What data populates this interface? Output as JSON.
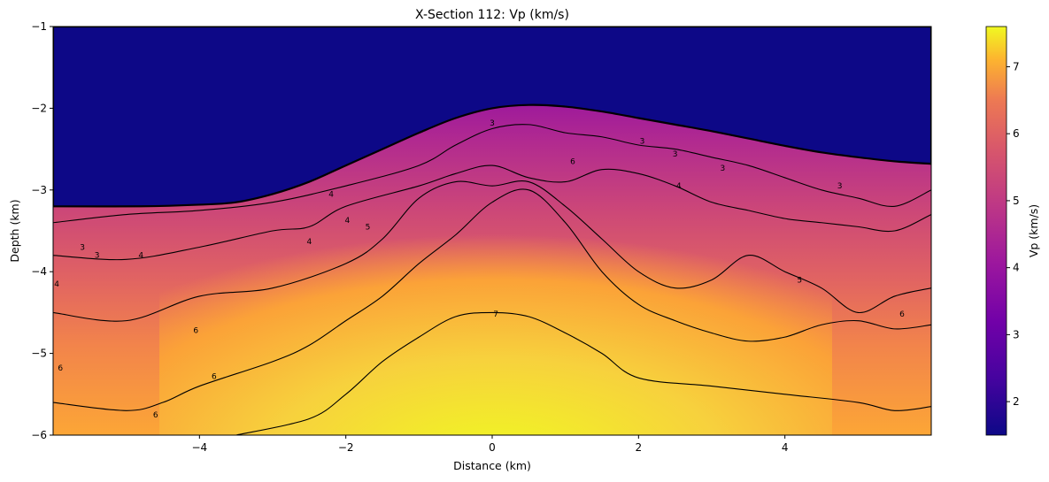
{
  "chart_data": {
    "type": "heatmap",
    "title": "X-Section 112: Vp (km/s)",
    "xlabel": "Distance (km)",
    "ylabel": "Depth (km)",
    "xlim": [
      -6,
      6
    ],
    "ylim": [
      -6,
      -1
    ],
    "xticks": [
      -4,
      -2,
      0,
      2,
      4
    ],
    "yticks": [
      -1,
      -2,
      -3,
      -4,
      -5,
      -6
    ],
    "colorscale": "plasma",
    "colorbar": {
      "label": "Vp (km/s)",
      "range": [
        1.5,
        7.6
      ],
      "ticks": [
        2,
        3,
        4,
        5,
        6,
        7
      ]
    },
    "surface_profile": {
      "x": [
        -6,
        -4.8,
        -4,
        -3.5,
        -3,
        -2.5,
        -2,
        -1.5,
        -1,
        -0.5,
        0,
        0.5,
        1,
        1.5,
        2,
        2.5,
        3,
        3.5,
        4,
        4.5,
        5,
        5.5,
        6
      ],
      "depth": [
        -3.2,
        -3.2,
        -3.18,
        -3.15,
        -3.05,
        -2.9,
        -2.7,
        -2.5,
        -2.3,
        -2.12,
        -2.0,
        -1.96,
        -1.98,
        -2.04,
        -2.12,
        -2.2,
        -2.28,
        -2.37,
        -2.46,
        -2.54,
        -2.6,
        -2.65,
        -2.68
      ]
    },
    "contours": [
      {
        "level": 3,
        "x": [
          -6,
          -5,
          -4,
          -3,
          -2,
          -1,
          -0.5,
          0,
          0.5,
          1,
          1.5,
          2,
          2.5,
          3,
          3.5,
          4,
          4.5,
          5,
          5.5,
          6
        ],
        "depth": [
          -3.4,
          -3.3,
          -3.25,
          -3.15,
          -2.95,
          -2.7,
          -2.45,
          -2.25,
          -2.2,
          -2.3,
          -2.35,
          -2.45,
          -2.5,
          -2.6,
          -2.7,
          -2.85,
          -3.0,
          -3.1,
          -3.2,
          -3.0
        ]
      },
      {
        "level": 4,
        "x": [
          -6,
          -5,
          -4,
          -3,
          -2.5,
          -2,
          -1,
          -0.5,
          0,
          0.5,
          1,
          1.5,
          2,
          2.5,
          3,
          3.5,
          4,
          4.5,
          5,
          5.5,
          6
        ],
        "depth": [
          -3.8,
          -3.85,
          -3.7,
          -3.5,
          -3.45,
          -3.2,
          -2.95,
          -2.8,
          -2.7,
          -2.85,
          -2.9,
          -2.75,
          -2.8,
          -2.95,
          -3.15,
          -3.25,
          -3.35,
          -3.4,
          -3.45,
          -3.5,
          -3.3
        ]
      },
      {
        "level": 5,
        "x": [
          -6,
          -5,
          -4,
          -3,
          -2,
          -1.5,
          -1,
          -0.5,
          0,
          0.5,
          1,
          1.5,
          2,
          2.5,
          3,
          3.5,
          4,
          4.5,
          5,
          5.5,
          6
        ],
        "depth": [
          -4.5,
          -4.6,
          -4.3,
          -4.2,
          -3.9,
          -3.6,
          -3.1,
          -2.9,
          -2.95,
          -2.9,
          -3.2,
          -3.6,
          -4.0,
          -4.2,
          -4.1,
          -3.8,
          -4.0,
          -4.2,
          -4.5,
          -4.3,
          -4.2
        ]
      },
      {
        "level": 6,
        "x": [
          -6,
          -5,
          -4.5,
          -4,
          -3,
          -2.5,
          -2,
          -1.5,
          -1,
          -0.5,
          0,
          0.5,
          1,
          1.5,
          2,
          2.5,
          3,
          3.5,
          4,
          4.5,
          5,
          5.5,
          6
        ],
        "depth": [
          -5.6,
          -5.7,
          -5.6,
          -5.4,
          -5.1,
          -4.9,
          -4.6,
          -4.3,
          -3.9,
          -3.55,
          -3.15,
          -3.0,
          -3.4,
          -4.0,
          -4.4,
          -4.6,
          -4.75,
          -4.85,
          -4.8,
          -4.65,
          -4.6,
          -4.7,
          -4.65
        ]
      },
      {
        "level": 7,
        "x": [
          -3.5,
          -2.5,
          -2,
          -1.5,
          -1,
          -0.5,
          0,
          0.5,
          1,
          1.5,
          2,
          3,
          4,
          5,
          5.5,
          6
        ],
        "depth": [
          -6.0,
          -5.8,
          -5.5,
          -5.1,
          -4.8,
          -4.55,
          -4.5,
          -4.55,
          -4.75,
          -5.0,
          -5.3,
          -5.4,
          -5.5,
          -5.6,
          -5.7,
          -5.65
        ]
      }
    ],
    "contour_labels": [
      {
        "text": "3",
        "x": 0.0,
        "depth": -2.18
      },
      {
        "text": "3",
        "x": 2.05,
        "depth": -2.4
      },
      {
        "text": "3",
        "x": 2.5,
        "depth": -2.56
      },
      {
        "text": "3",
        "x": 3.15,
        "depth": -2.73
      },
      {
        "text": "3",
        "x": 4.75,
        "depth": -2.95
      },
      {
        "text": "3",
        "x": -5.6,
        "depth": -3.7
      },
      {
        "text": "3",
        "x": -5.4,
        "depth": -3.8
      },
      {
        "text": "4",
        "x": -2.2,
        "depth": -3.05
      },
      {
        "text": "4",
        "x": 2.55,
        "depth": -2.95
      },
      {
        "text": "4",
        "x": -4.8,
        "depth": -3.8
      },
      {
        "text": "4",
        "x": -2.5,
        "depth": -3.63
      },
      {
        "text": "4",
        "x": -1.98,
        "depth": -3.37
      },
      {
        "text": "4",
        "x": -5.95,
        "depth": -4.15
      },
      {
        "text": "5",
        "x": -1.7,
        "depth": -3.45
      },
      {
        "text": "5",
        "x": 4.2,
        "depth": -4.1
      },
      {
        "text": "6",
        "x": 1.1,
        "depth": -2.65
      },
      {
        "text": "6",
        "x": -4.05,
        "depth": -4.72
      },
      {
        "text": "6",
        "x": -5.9,
        "depth": -5.18
      },
      {
        "text": "6",
        "x": -3.8,
        "depth": -5.28
      },
      {
        "text": "6",
        "x": -4.6,
        "depth": -5.75
      },
      {
        "text": "6",
        "x": 5.6,
        "depth": -4.52
      },
      {
        "text": "7",
        "x": 0.05,
        "depth": -4.52
      }
    ]
  }
}
